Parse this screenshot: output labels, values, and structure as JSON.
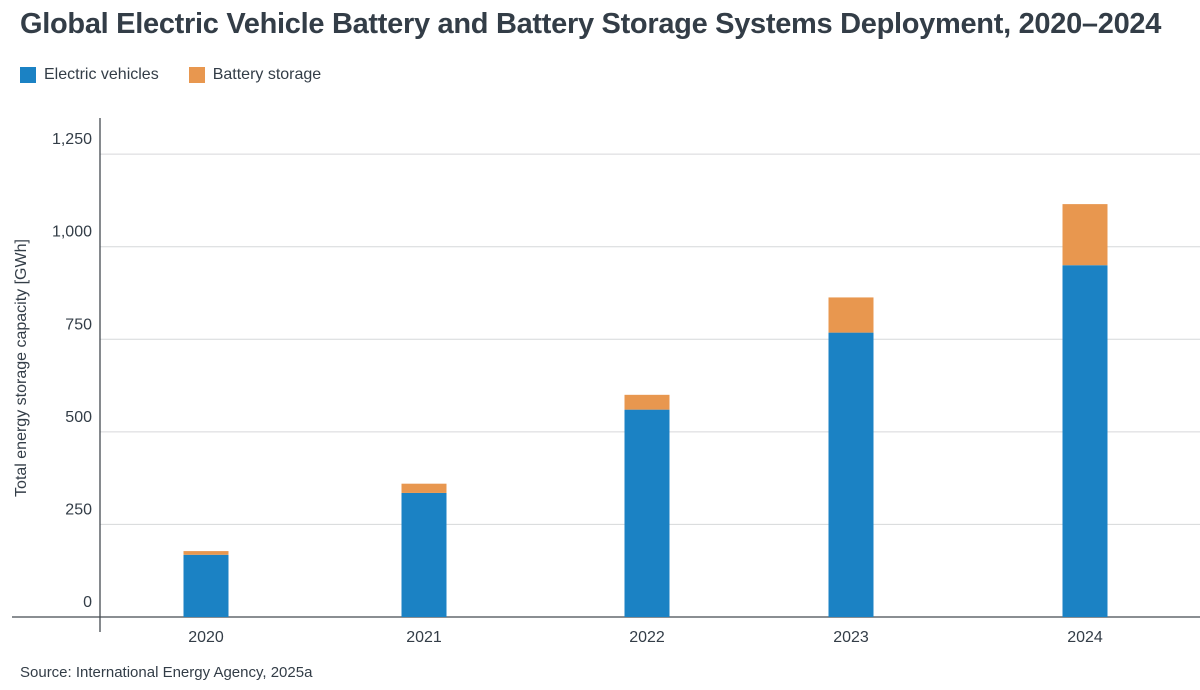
{
  "chart_data": {
    "type": "bar",
    "stacked": true,
    "title": "Global Electric Vehicle Battery and Battery Storage Systems Deployment, 2020–2024",
    "ylabel": "Total energy storage capacity [GWh]",
    "xlabel": "",
    "categories": [
      "2020",
      "2021",
      "2022",
      "2023",
      "2024"
    ],
    "series": [
      {
        "name": "Electric vehicles",
        "color": "#1b82c4",
        "values": [
          168,
          335,
          560,
          768,
          950
        ]
      },
      {
        "name": "Battery storage",
        "color": "#e8974f",
        "values": [
          10,
          25,
          40,
          95,
          165
        ]
      }
    ],
    "ylim": [
      0,
      1350
    ],
    "yticks": [
      0,
      250,
      500,
      750,
      1000,
      1250
    ],
    "ytick_labels": [
      "0",
      "250",
      "500",
      "750",
      "1,000",
      "1,250"
    ],
    "grid": true,
    "legend_position": "top-left",
    "source": "Source: International Energy Agency, 2025a"
  }
}
